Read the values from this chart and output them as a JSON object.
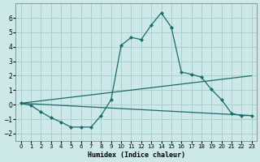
{
  "xlabel": "Humidex (Indice chaleur)",
  "bg_color": "#cce8e8",
  "grid_color": "#aacfcf",
  "line_color": "#1a6b6b",
  "xlim": [
    -0.5,
    23.5
  ],
  "ylim": [
    -2.5,
    7.0
  ],
  "yticks": [
    -2,
    -1,
    0,
    1,
    2,
    3,
    4,
    5,
    6
  ],
  "xticks": [
    0,
    1,
    2,
    3,
    4,
    5,
    6,
    7,
    8,
    9,
    10,
    11,
    12,
    13,
    14,
    15,
    16,
    17,
    18,
    19,
    20,
    21,
    22,
    23
  ],
  "line1_x": [
    0,
    1,
    2,
    3,
    4,
    5,
    6,
    7,
    8,
    9,
    10,
    11,
    12,
    13,
    14,
    15,
    16,
    17,
    18,
    19,
    20,
    21,
    22,
    23
  ],
  "line1_y": [
    0.1,
    -0.05,
    -0.5,
    -0.9,
    -1.2,
    -1.55,
    -1.55,
    -1.55,
    -0.75,
    0.35,
    4.1,
    4.65,
    4.5,
    5.5,
    6.35,
    5.35,
    2.25,
    2.1,
    1.9,
    1.05,
    0.35,
    -0.6,
    -0.75,
    -0.75
  ],
  "line2_x": [
    0,
    23
  ],
  "line2_y": [
    0.1,
    2.0
  ],
  "line3_x": [
    0,
    23
  ],
  "line3_y": [
    0.1,
    -0.75
  ]
}
